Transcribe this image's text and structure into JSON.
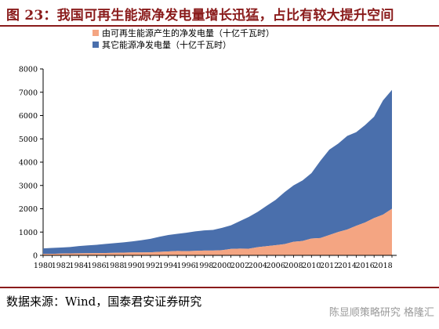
{
  "title": "图 23：我国可再生能源净发电量增长迅猛，占比有较大提升空间",
  "source": "数据来源：Wind，国泰君安证券研究",
  "watermark": "陈显顺策略研究 格隆汇",
  "colors": {
    "renewable": "#f4a582",
    "other": "#4a6fac",
    "title": "#8a1b1b"
  },
  "chart_data": {
    "type": "area",
    "stacked": true,
    "title": "",
    "xlabel": "",
    "ylabel": "",
    "ylim": [
      0,
      8000
    ],
    "yticks": [
      0,
      1000,
      2000,
      3000,
      4000,
      5000,
      6000,
      7000,
      8000
    ],
    "xticks": [
      1980,
      1982,
      1984,
      1986,
      1988,
      1990,
      1992,
      1994,
      1996,
      1998,
      2000,
      2002,
      2004,
      2006,
      2008,
      2010,
      2012,
      2014,
      2016,
      2018
    ],
    "legend_position": "top-left",
    "x": [
      1980,
      1981,
      1982,
      1983,
      1984,
      1985,
      1986,
      1987,
      1988,
      1989,
      1990,
      1991,
      1992,
      1993,
      1994,
      1995,
      1996,
      1997,
      1998,
      1999,
      2000,
      2001,
      2002,
      2003,
      2004,
      2005,
      2006,
      2007,
      2008,
      2009,
      2010,
      2011,
      2012,
      2013,
      2014,
      2015,
      2016,
      2017,
      2018,
      2019
    ],
    "series": [
      {
        "name": "由可再生能源产生的净发电量（十亿千瓦时）",
        "values": [
          58,
          65,
          74,
          86,
          87,
          92,
          95,
          100,
          109,
          118,
          126,
          124,
          130,
          151,
          167,
          190,
          180,
          195,
          204,
          204,
          222,
          278,
          288,
          284,
          353,
          397,
          436,
          484,
          585,
          616,
          722,
          743,
          873,
          1006,
          1108,
          1268,
          1411,
          1600,
          1750,
          2000
        ]
      },
      {
        "name": "其它能源净发电量（十亿千瓦时）",
        "values": [
          242,
          253,
          264,
          270,
          313,
          338,
          359,
          391,
          418,
          442,
          474,
          528,
          581,
          646,
          708,
          735,
          790,
          833,
          866,
          887,
          957,
          1011,
          1182,
          1366,
          1517,
          1733,
          1947,
          2232,
          2420,
          2599,
          2806,
          3317,
          3665,
          3794,
          4020,
          4018,
          4180,
          4350,
          4900,
          5100
        ]
      }
    ]
  }
}
